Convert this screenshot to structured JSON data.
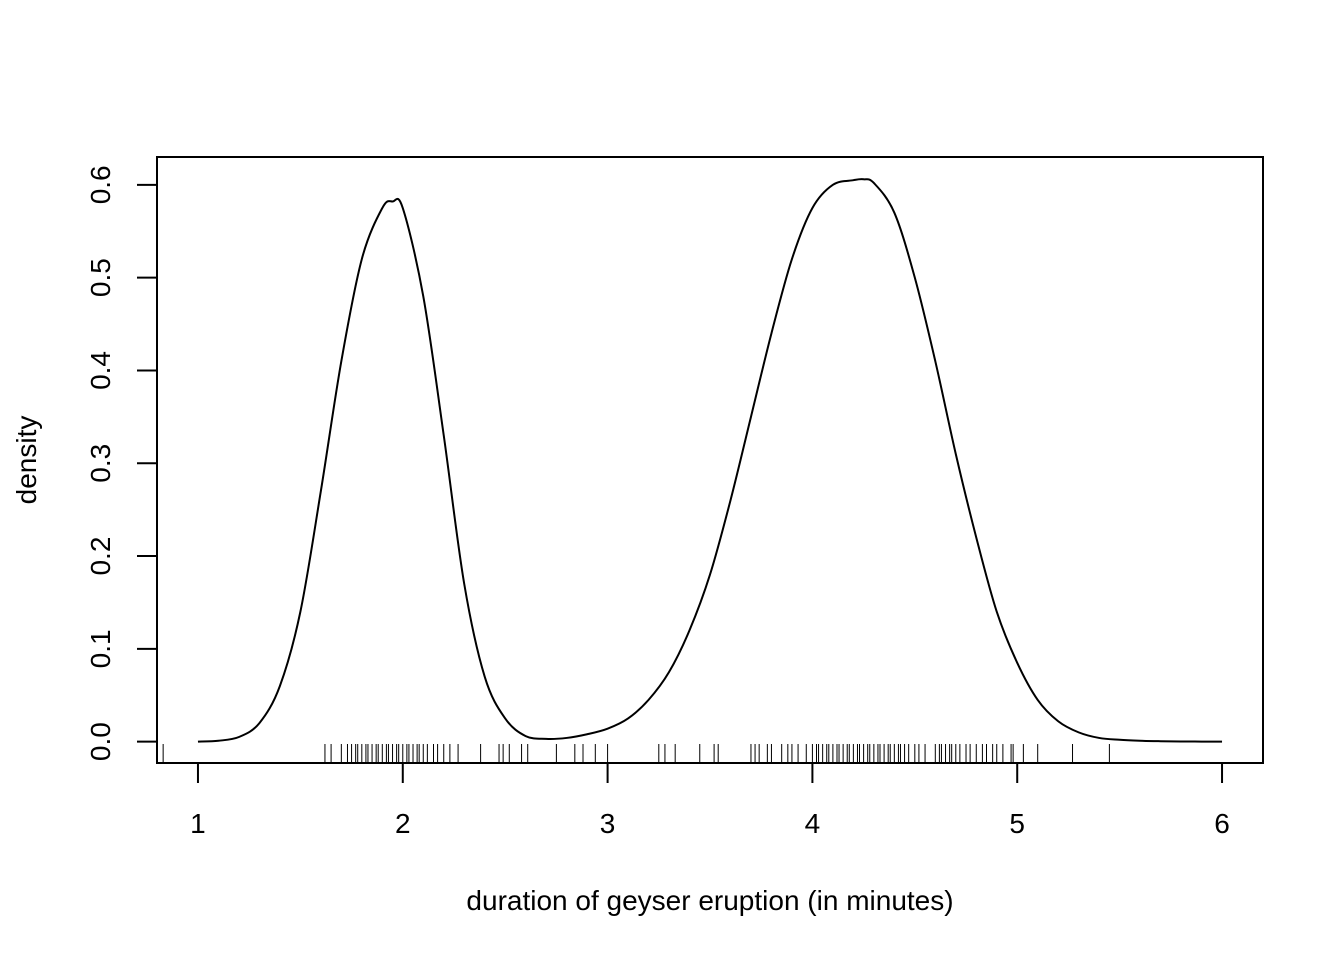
{
  "chart_data": {
    "type": "line",
    "title": "",
    "xlabel": "duration of geyser eruption (in minutes)",
    "ylabel": "density",
    "xlim": [
      0.8,
      6.2
    ],
    "ylim": [
      -0.023,
      0.63
    ],
    "xticks": [
      "1",
      "2",
      "3",
      "4",
      "5",
      "6"
    ],
    "yticks": [
      "0.0",
      "0.1",
      "0.2",
      "0.3",
      "0.4",
      "0.5",
      "0.6"
    ],
    "grid": false,
    "legend": "none",
    "series": [
      {
        "x": [
          1.0,
          1.1,
          1.2,
          1.3,
          1.4,
          1.5,
          1.6,
          1.7,
          1.8,
          1.9,
          1.95,
          2.0,
          2.1,
          2.2,
          2.3,
          2.4,
          2.5,
          2.6,
          2.7,
          2.8,
          2.9,
          3.0,
          3.1,
          3.2,
          3.3,
          3.4,
          3.5,
          3.6,
          3.7,
          3.8,
          3.9,
          4.0,
          4.1,
          4.2,
          4.25,
          4.3,
          4.4,
          4.5,
          4.6,
          4.7,
          4.8,
          4.9,
          5.0,
          5.1,
          5.2,
          5.3,
          5.4,
          5.5,
          5.6,
          5.7,
          5.8,
          5.9,
          6.0
        ],
        "y": [
          0.0,
          0.001,
          0.005,
          0.02,
          0.06,
          0.14,
          0.27,
          0.41,
          0.52,
          0.575,
          0.582,
          0.575,
          0.48,
          0.33,
          0.17,
          0.07,
          0.025,
          0.006,
          0.003,
          0.004,
          0.008,
          0.014,
          0.025,
          0.045,
          0.075,
          0.12,
          0.18,
          0.26,
          0.35,
          0.44,
          0.52,
          0.575,
          0.6,
          0.605,
          0.606,
          0.602,
          0.57,
          0.5,
          0.41,
          0.31,
          0.22,
          0.14,
          0.085,
          0.045,
          0.022,
          0.01,
          0.004,
          0.002,
          0.001,
          0.0005,
          0.0002,
          0.0001,
          0.0
        ]
      }
    ],
    "rug": [
      0.83,
      1.62,
      1.65,
      1.7,
      1.73,
      1.75,
      1.77,
      1.78,
      1.8,
      1.82,
      1.83,
      1.85,
      1.87,
      1.88,
      1.9,
      1.92,
      1.93,
      1.95,
      1.97,
      1.98,
      2.0,
      2.02,
      2.03,
      2.05,
      2.07,
      2.08,
      2.1,
      2.12,
      2.15,
      2.17,
      2.2,
      2.23,
      2.27,
      2.38,
      2.47,
      2.49,
      2.52,
      2.58,
      2.61,
      2.75,
      2.84,
      2.88,
      2.94,
      3.0,
      3.25,
      3.28,
      3.33,
      3.45,
      3.52,
      3.54,
      3.7,
      3.72,
      3.74,
      3.78,
      3.8,
      3.85,
      3.88,
      3.9,
      3.93,
      3.97,
      4.0,
      4.02,
      4.03,
      4.05,
      4.07,
      4.08,
      4.1,
      4.12,
      4.13,
      4.15,
      4.17,
      4.18,
      4.2,
      4.22,
      4.23,
      4.25,
      4.27,
      4.28,
      4.3,
      4.32,
      4.33,
      4.35,
      4.37,
      4.38,
      4.4,
      4.42,
      4.43,
      4.45,
      4.47,
      4.5,
      4.52,
      4.55,
      4.6,
      4.62,
      4.63,
      4.65,
      4.67,
      4.68,
      4.7,
      4.72,
      4.75,
      4.77,
      4.8,
      4.83,
      4.85,
      4.88,
      4.9,
      4.93,
      4.97,
      4.98,
      5.03,
      5.1,
      5.27,
      5.45
    ]
  }
}
